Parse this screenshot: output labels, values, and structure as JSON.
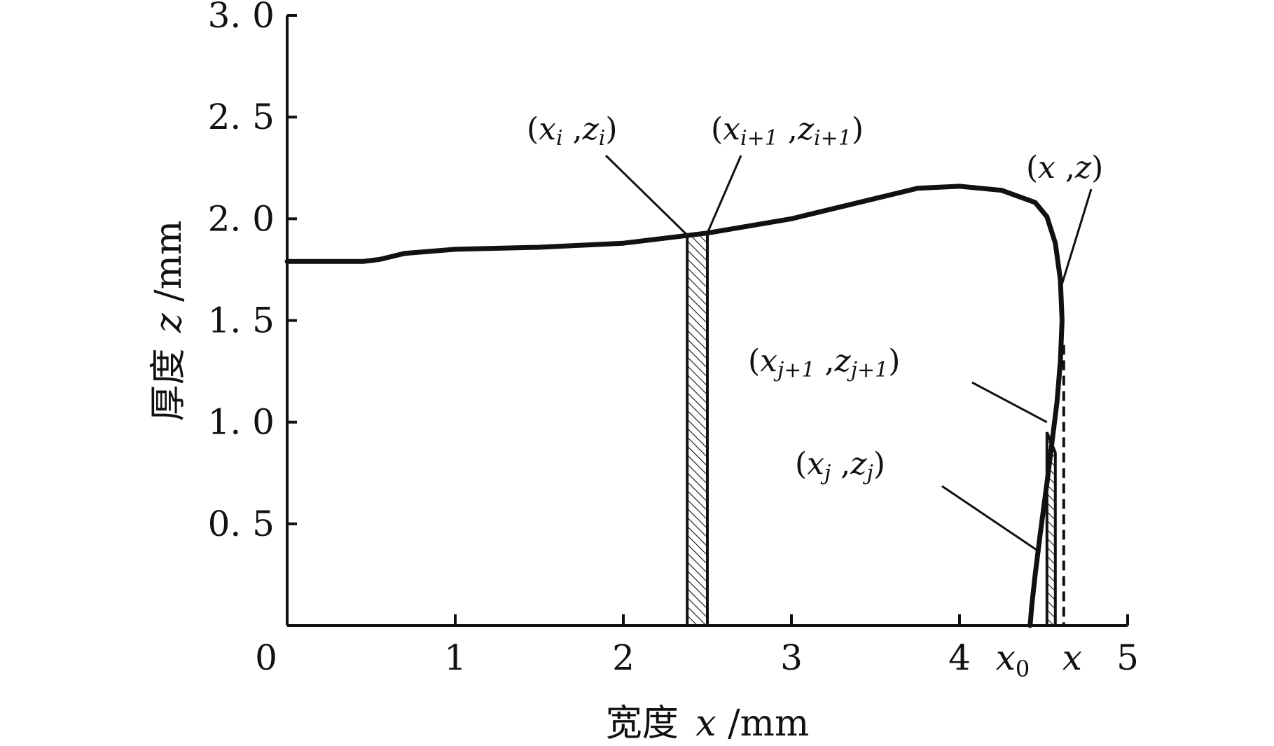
{
  "chart_data": {
    "type": "line",
    "xlabel": {
      "prefix": "宽度",
      "var": "x",
      "unit": "/mm"
    },
    "ylabel": {
      "prefix": "厚度",
      "var": "z",
      "unit": "/mm"
    },
    "xlim": [
      0,
      5
    ],
    "ylim": [
      0,
      3.0
    ],
    "xticks": [
      "0",
      "1",
      "2",
      "3",
      "4",
      "5"
    ],
    "yticks": [
      "0.5",
      "1.0",
      "1.5",
      "2.0",
      "2.5",
      "3.0"
    ],
    "x_marks": [
      {
        "label": "x",
        "sub": "0",
        "x": 4.4
      },
      {
        "label": "x",
        "sub": "",
        "x": 4.62
      }
    ],
    "series": [
      {
        "x": [
          0,
          0.45,
          0.55,
          0.7,
          1.0,
          1.5,
          2.0,
          2.5,
          3.0,
          3.5,
          3.75,
          4.0,
          4.25,
          4.45,
          4.52,
          4.57,
          4.6,
          4.61,
          4.6,
          4.58,
          4.55,
          4.52,
          4.48,
          4.45,
          4.43,
          4.42
        ],
        "y": [
          1.79,
          1.79,
          1.8,
          1.83,
          1.85,
          1.86,
          1.88,
          1.93,
          2.0,
          2.1,
          2.15,
          2.16,
          2.14,
          2.08,
          2.01,
          1.88,
          1.7,
          1.5,
          1.3,
          1.1,
          0.9,
          0.7,
          0.45,
          0.25,
          0.1,
          0.0
        ]
      }
    ],
    "strips": [
      {
        "x0": 2.38,
        "x1": 2.5,
        "z0": 1.92,
        "z1": 1.93
      },
      {
        "x0": 4.52,
        "x1": 4.57,
        "z0": 0.95,
        "z1": 0.85
      }
    ],
    "dashed_marker": {
      "x": 4.62,
      "z": 1.38
    },
    "annotations": [
      {
        "id": "xi",
        "sub": "i",
        "sub2": "i",
        "tx": 2.38,
        "tz": 1.92
      },
      {
        "id": "xi1",
        "sub": "i+1",
        "sub2": "i+1",
        "tx": 2.5,
        "tz": 1.93
      },
      {
        "id": "xz",
        "sub": "",
        "sub2": "",
        "tx": 4.61,
        "tz": 1.68
      },
      {
        "id": "xj1",
        "sub": "j+1",
        "sub2": "j+1",
        "tx": 4.52,
        "tz": 1.0
      },
      {
        "id": "xj",
        "sub": "j",
        "sub2": "j",
        "tx": 4.48,
        "tz": 0.36
      }
    ]
  }
}
